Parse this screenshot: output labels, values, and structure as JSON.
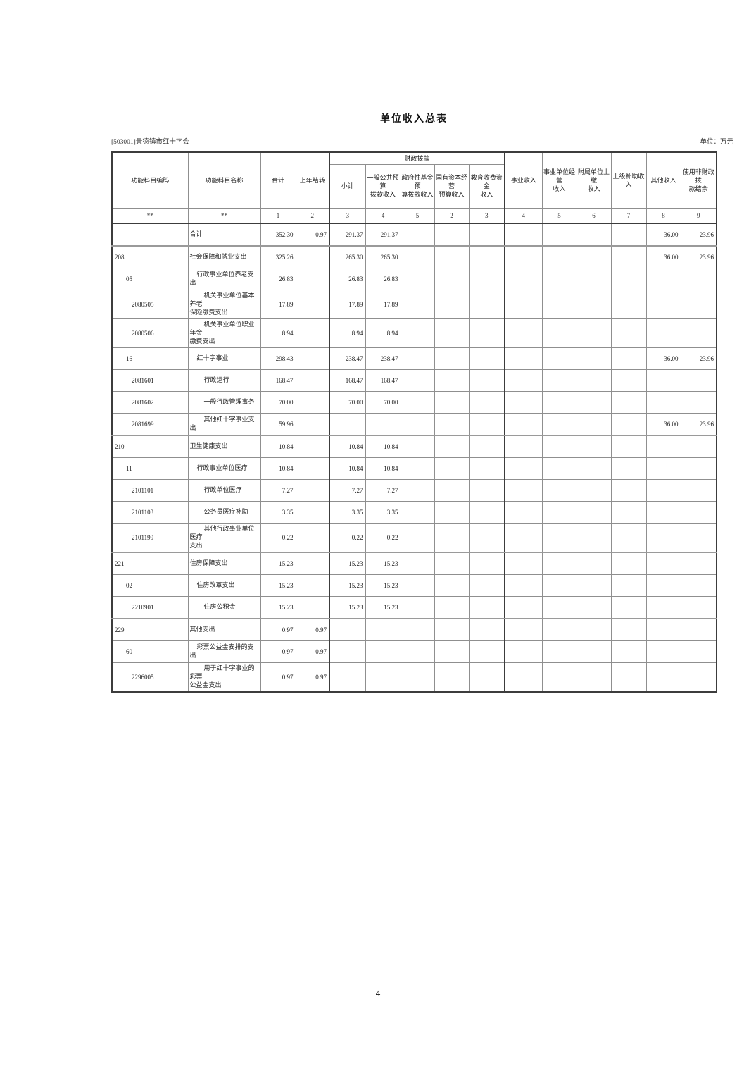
{
  "page": {
    "title": "单位收入总表",
    "entity": "[503001]景德镇市红十字会",
    "unit_label": "单位：万元",
    "page_number": "4"
  },
  "table": {
    "header": {
      "col_code": "功能科目编码",
      "col_name": "功能科目名称",
      "col_total": "合计",
      "col_carryover": "上年结转",
      "group_fiscal": "财政拨款",
      "col_fiscal_subtotal": "小计",
      "col_general_public": "一般公共预算\n拨款收入",
      "col_govt_fund": "政府性基金预\n算拨款收入",
      "col_state_capital": "国有资本经营\n预算收入",
      "col_education_fee": "教育收费资金\n收入",
      "col_operating": "事业收入",
      "col_unit_operating": "事业单位经营\n收入",
      "col_affiliated": "附属单位上缴\n收入",
      "col_superior": "上级补助收入",
      "col_other": "其他收入",
      "col_nonfiscal": "使用非财政拨\n款结余"
    },
    "lane_row": [
      "**",
      "**",
      "1",
      "2",
      "3",
      "4",
      "5",
      "2",
      "3",
      "4",
      "5",
      "6",
      "7",
      "8",
      "9"
    ],
    "value_columns": [
      "total",
      "carryover",
      "fiscal-subtotal",
      "general-public-budget",
      "govt-fund-budget",
      "state-capital-budget",
      "education-fee-income",
      "operating-income",
      "unit-operating-income",
      "affiliated-unit-income",
      "superior-subsidy-income",
      "other-income",
      "non-fiscal-balance"
    ],
    "rows": [
      {
        "code": "",
        "name": "合计",
        "indent": 0,
        "sep": true,
        "values": [
          "352.30",
          "0.97",
          "291.37",
          "291.37",
          "",
          "",
          "",
          "",
          "",
          "",
          "",
          "36.00",
          "23.96"
        ]
      },
      {
        "code": "208",
        "name": "社会保障和就业支出",
        "indent": 0,
        "values": [
          "325.26",
          "",
          "265.30",
          "265.30",
          "",
          "",
          "",
          "",
          "",
          "",
          "",
          "36.00",
          "23.96"
        ]
      },
      {
        "code": "05",
        "name": "行政事业单位养老支出",
        "indent": 1,
        "values": [
          "26.83",
          "",
          "26.83",
          "26.83",
          "",
          "",
          "",
          "",
          "",
          "",
          "",
          "",
          ""
        ]
      },
      {
        "code": "2080505",
        "name": "机关事业单位基本养老\n保险缴费支出",
        "indent": 2,
        "values": [
          "17.89",
          "",
          "17.89",
          "17.89",
          "",
          "",
          "",
          "",
          "",
          "",
          "",
          "",
          ""
        ]
      },
      {
        "code": "2080506",
        "name": "机关事业单位职业年金\n缴费支出",
        "indent": 2,
        "values": [
          "8.94",
          "",
          "8.94",
          "8.94",
          "",
          "",
          "",
          "",
          "",
          "",
          "",
          "",
          ""
        ]
      },
      {
        "code": "16",
        "name": "红十字事业",
        "indent": 1,
        "values": [
          "298.43",
          "",
          "238.47",
          "238.47",
          "",
          "",
          "",
          "",
          "",
          "",
          "",
          "36.00",
          "23.96"
        ]
      },
      {
        "code": "2081601",
        "name": "行政运行",
        "indent": 2,
        "values": [
          "168.47",
          "",
          "168.47",
          "168.47",
          "",
          "",
          "",
          "",
          "",
          "",
          "",
          "",
          ""
        ]
      },
      {
        "code": "2081602",
        "name": "一般行政管理事务",
        "indent": 2,
        "values": [
          "70.00",
          "",
          "70.00",
          "70.00",
          "",
          "",
          "",
          "",
          "",
          "",
          "",
          "",
          ""
        ]
      },
      {
        "code": "2081699",
        "name": "其他红十字事业支出",
        "indent": 2,
        "sep": true,
        "values": [
          "59.96",
          "",
          "",
          "",
          "",
          "",
          "",
          "",
          "",
          "",
          "",
          "36.00",
          "23.96"
        ]
      },
      {
        "code": "210",
        "name": "卫生健康支出",
        "indent": 0,
        "values": [
          "10.84",
          "",
          "10.84",
          "10.84",
          "",
          "",
          "",
          "",
          "",
          "",
          "",
          "",
          ""
        ]
      },
      {
        "code": "11",
        "name": "行政事业单位医疗",
        "indent": 1,
        "values": [
          "10.84",
          "",
          "10.84",
          "10.84",
          "",
          "",
          "",
          "",
          "",
          "",
          "",
          "",
          ""
        ]
      },
      {
        "code": "2101101",
        "name": "行政单位医疗",
        "indent": 2,
        "values": [
          "7.27",
          "",
          "7.27",
          "7.27",
          "",
          "",
          "",
          "",
          "",
          "",
          "",
          "",
          ""
        ]
      },
      {
        "code": "2101103",
        "name": "公务员医疗补助",
        "indent": 2,
        "values": [
          "3.35",
          "",
          "3.35",
          "3.35",
          "",
          "",
          "",
          "",
          "",
          "",
          "",
          "",
          ""
        ]
      },
      {
        "code": "2101199",
        "name": "其他行政事业单位医疗\n支出",
        "indent": 2,
        "sep": true,
        "values": [
          "0.22",
          "",
          "0.22",
          "0.22",
          "",
          "",
          "",
          "",
          "",
          "",
          "",
          "",
          ""
        ]
      },
      {
        "code": "221",
        "name": "住房保障支出",
        "indent": 0,
        "values": [
          "15.23",
          "",
          "15.23",
          "15.23",
          "",
          "",
          "",
          "",
          "",
          "",
          "",
          "",
          ""
        ]
      },
      {
        "code": "02",
        "name": "住房改革支出",
        "indent": 1,
        "values": [
          "15.23",
          "",
          "15.23",
          "15.23",
          "",
          "",
          "",
          "",
          "",
          "",
          "",
          "",
          ""
        ]
      },
      {
        "code": "2210901",
        "name": "住房公积金",
        "indent": 2,
        "sep": true,
        "values": [
          "15.23",
          "",
          "15.23",
          "15.23",
          "",
          "",
          "",
          "",
          "",
          "",
          "",
          "",
          ""
        ]
      },
      {
        "code": "229",
        "name": "其他支出",
        "indent": 0,
        "values": [
          "0.97",
          "0.97",
          "",
          "",
          "",
          "",
          "",
          "",
          "",
          "",
          "",
          "",
          ""
        ]
      },
      {
        "code": "60",
        "name": "彩票公益金安排的支出",
        "indent": 1,
        "values": [
          "0.97",
          "0.97",
          "",
          "",
          "",
          "",
          "",
          "",
          "",
          "",
          "",
          "",
          ""
        ]
      },
      {
        "code": "2296005",
        "name": "用于红十字事业的彩票\n公益金支出",
        "indent": 2,
        "values": [
          "0.97",
          "0.97",
          "",
          "",
          "",
          "",
          "",
          "",
          "",
          "",
          "",
          "",
          ""
        ]
      }
    ]
  }
}
